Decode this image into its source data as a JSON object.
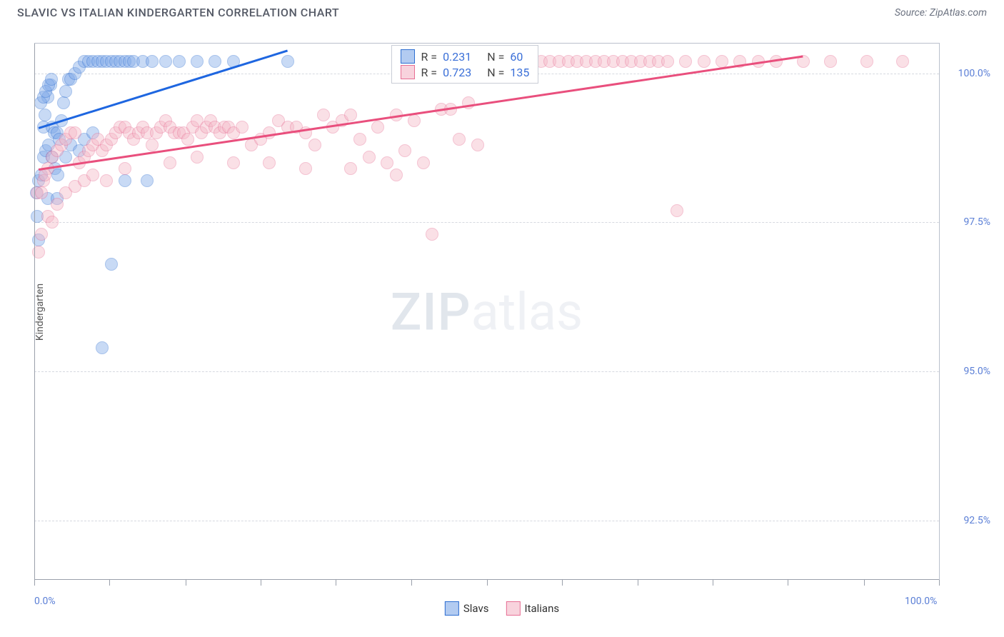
{
  "header": {
    "title": "SLAVIC VS ITALIAN KINDERGARTEN CORRELATION CHART",
    "source_prefix": "Source: ",
    "source": "ZipAtlas.com"
  },
  "watermark": {
    "zip": "ZIP",
    "atlas": "atlas"
  },
  "chart": {
    "type": "scatter",
    "ylabel": "Kindergarten",
    "xlim": [
      0,
      100
    ],
    "ylim": [
      91.5,
      100.5
    ],
    "x_ticks_pct": [
      0,
      8.3,
      16.7,
      25,
      33.3,
      41.7,
      50,
      58.3,
      66.7,
      75,
      83.3,
      91.7,
      100
    ],
    "x_tick_labels": [
      {
        "pct": 0,
        "text": "0.0%",
        "align": "left"
      },
      {
        "pct": 100,
        "text": "100.0%",
        "align": "right"
      }
    ],
    "y_gridlines": [
      92.5,
      95.0,
      97.5,
      100.0
    ],
    "y_tick_labels": [
      "92.5%",
      "95.0%",
      "97.5%",
      "100.0%"
    ],
    "background_color": "#ffffff",
    "grid_color": "#d6d9e0",
    "axis_color": "#9aa0ab",
    "tick_label_color": "#5b7fd6",
    "marker": {
      "radius": 9,
      "opacity": 0.42,
      "stroke_opacity": 0.85,
      "stroke_width": 1.3
    },
    "series": [
      {
        "key": "slavs",
        "label": "Slavs",
        "color_fill": "#7ea8e8",
        "color_stroke": "#2f6fd1",
        "trend_color": "#1e66e0",
        "corr": {
          "R": "0.231",
          "N": "60"
        },
        "trend": {
          "x0": 0.5,
          "y0": 99.1,
          "x1": 28,
          "y1": 100.4
        },
        "points": [
          [
            0.5,
            98.2
          ],
          [
            0.8,
            98.3
          ],
          [
            1.0,
            99.1
          ],
          [
            1.2,
            99.3
          ],
          [
            1.5,
            99.6
          ],
          [
            1.8,
            99.8
          ],
          [
            2.0,
            99.1
          ],
          [
            2.2,
            99.0
          ],
          [
            2.5,
            99.0
          ],
          [
            2.8,
            98.9
          ],
          [
            3.0,
            99.2
          ],
          [
            3.2,
            99.5
          ],
          [
            3.5,
            99.7
          ],
          [
            3.8,
            99.9
          ],
          [
            4.0,
            99.9
          ],
          [
            4.5,
            100.0
          ],
          [
            5.0,
            100.1
          ],
          [
            5.5,
            100.2
          ],
          [
            6.0,
            100.2
          ],
          [
            6.5,
            100.2
          ],
          [
            7.0,
            100.2
          ],
          [
            7.5,
            100.2
          ],
          [
            8.0,
            100.2
          ],
          [
            8.5,
            100.2
          ],
          [
            9.0,
            100.2
          ],
          [
            9.5,
            100.2
          ],
          [
            10.0,
            100.2
          ],
          [
            10.5,
            100.2
          ],
          [
            11.0,
            100.2
          ],
          [
            12.0,
            100.2
          ],
          [
            13.0,
            100.2
          ],
          [
            14.5,
            100.2
          ],
          [
            16.0,
            100.2
          ],
          [
            18.0,
            100.2
          ],
          [
            20.0,
            100.2
          ],
          [
            22.0,
            100.2
          ],
          [
            28.0,
            100.2
          ],
          [
            1.0,
            98.6
          ],
          [
            1.3,
            98.7
          ],
          [
            1.6,
            98.8
          ],
          [
            2.0,
            98.6
          ],
          [
            2.3,
            98.4
          ],
          [
            2.6,
            98.3
          ],
          [
            0.7,
            99.5
          ],
          [
            1.0,
            99.6
          ],
          [
            1.3,
            99.7
          ],
          [
            1.6,
            99.8
          ],
          [
            1.9,
            99.9
          ],
          [
            3.5,
            98.6
          ],
          [
            4.0,
            98.8
          ],
          [
            5.0,
            98.7
          ],
          [
            5.5,
            98.9
          ],
          [
            6.5,
            99.0
          ],
          [
            1.5,
            97.9
          ],
          [
            2.5,
            97.9
          ],
          [
            0.5,
            97.2
          ],
          [
            0.3,
            97.6
          ],
          [
            0.2,
            98.0
          ],
          [
            8.5,
            96.8
          ],
          [
            7.5,
            95.4
          ],
          [
            10.0,
            98.2
          ],
          [
            12.5,
            98.2
          ]
        ]
      },
      {
        "key": "italians",
        "label": "Italians",
        "color_fill": "#f4b6c6",
        "color_stroke": "#e76r94",
        "color_stroke_fixed": "#e76f94",
        "trend_color": "#e94f7d",
        "corr": {
          "R": "0.723",
          "N": "135"
        },
        "trend": {
          "x0": 0.5,
          "y0": 98.4,
          "x1": 85,
          "y1": 100.3
        },
        "points": [
          [
            0.3,
            98.0
          ],
          [
            0.5,
            97.0
          ],
          [
            0.8,
            97.3
          ],
          [
            1.0,
            98.2
          ],
          [
            1.5,
            98.4
          ],
          [
            2.0,
            98.6
          ],
          [
            2.5,
            98.7
          ],
          [
            3.0,
            98.8
          ],
          [
            3.5,
            98.9
          ],
          [
            4.0,
            99.0
          ],
          [
            4.5,
            99.0
          ],
          [
            5.0,
            98.5
          ],
          [
            5.5,
            98.6
          ],
          [
            6.0,
            98.7
          ],
          [
            6.5,
            98.8
          ],
          [
            7.0,
            98.9
          ],
          [
            7.5,
            98.7
          ],
          [
            8.0,
            98.8
          ],
          [
            8.5,
            98.9
          ],
          [
            9.0,
            99.0
          ],
          [
            9.5,
            99.1
          ],
          [
            10.0,
            99.1
          ],
          [
            10.5,
            99.0
          ],
          [
            11.0,
            98.9
          ],
          [
            11.5,
            99.0
          ],
          [
            12.0,
            99.1
          ],
          [
            12.5,
            99.0
          ],
          [
            13.0,
            98.8
          ],
          [
            13.5,
            99.0
          ],
          [
            14.0,
            99.1
          ],
          [
            14.5,
            99.2
          ],
          [
            15.0,
            99.1
          ],
          [
            15.5,
            99.0
          ],
          [
            16.0,
            99.0
          ],
          [
            16.5,
            99.0
          ],
          [
            17.0,
            98.9
          ],
          [
            17.5,
            99.1
          ],
          [
            18.0,
            99.2
          ],
          [
            18.5,
            99.0
          ],
          [
            19.0,
            99.1
          ],
          [
            19.5,
            99.2
          ],
          [
            20.0,
            99.1
          ],
          [
            20.5,
            99.0
          ],
          [
            21.0,
            99.1
          ],
          [
            21.5,
            99.1
          ],
          [
            22.0,
            99.0
          ],
          [
            23.0,
            99.1
          ],
          [
            24.0,
            98.8
          ],
          [
            25.0,
            98.9
          ],
          [
            26.0,
            99.0
          ],
          [
            27.0,
            99.2
          ],
          [
            28.0,
            99.1
          ],
          [
            29.0,
            99.1
          ],
          [
            30.0,
            99.0
          ],
          [
            31.0,
            98.8
          ],
          [
            32.0,
            99.3
          ],
          [
            33.0,
            99.1
          ],
          [
            34.0,
            99.2
          ],
          [
            35.0,
            99.3
          ],
          [
            36.0,
            98.9
          ],
          [
            37.0,
            98.6
          ],
          [
            38.0,
            99.1
          ],
          [
            39.0,
            98.5
          ],
          [
            40.0,
            99.3
          ],
          [
            41.0,
            98.7
          ],
          [
            42.0,
            99.2
          ],
          [
            43.0,
            98.5
          ],
          [
            44.0,
            97.3
          ],
          [
            45.0,
            99.4
          ],
          [
            46.0,
            99.4
          ],
          [
            47.0,
            98.9
          ],
          [
            48.0,
            99.5
          ],
          [
            49.0,
            98.8
          ],
          [
            50.0,
            100.2
          ],
          [
            51.0,
            100.2
          ],
          [
            52.0,
            100.2
          ],
          [
            53.0,
            100.2
          ],
          [
            54.0,
            100.2
          ],
          [
            55.0,
            100.2
          ],
          [
            56.0,
            100.2
          ],
          [
            57.0,
            100.2
          ],
          [
            58.0,
            100.2
          ],
          [
            59.0,
            100.2
          ],
          [
            60.0,
            100.2
          ],
          [
            61.0,
            100.2
          ],
          [
            62.0,
            100.2
          ],
          [
            63.0,
            100.2
          ],
          [
            64.0,
            100.2
          ],
          [
            65.0,
            100.2
          ],
          [
            66.0,
            100.2
          ],
          [
            67.0,
            100.2
          ],
          [
            68.0,
            100.2
          ],
          [
            69.0,
            100.2
          ],
          [
            70.0,
            100.2
          ],
          [
            72.0,
            100.2
          ],
          [
            74.0,
            100.2
          ],
          [
            76.0,
            100.2
          ],
          [
            78.0,
            100.2
          ],
          [
            80.0,
            100.2
          ],
          [
            82.0,
            100.2
          ],
          [
            85.0,
            100.2
          ],
          [
            88.0,
            100.2
          ],
          [
            92.0,
            100.2
          ],
          [
            96.0,
            100.2
          ],
          [
            45.0,
            100.2
          ],
          [
            46.5,
            100.2
          ],
          [
            48.0,
            100.2
          ],
          [
            2.5,
            97.8
          ],
          [
            3.5,
            98.0
          ],
          [
            4.5,
            98.1
          ],
          [
            5.5,
            98.2
          ],
          [
            6.5,
            98.3
          ],
          [
            8.0,
            98.2
          ],
          [
            10.0,
            98.4
          ],
          [
            15.0,
            98.5
          ],
          [
            18.0,
            98.6
          ],
          [
            22.0,
            98.5
          ],
          [
            26.0,
            98.5
          ],
          [
            30.0,
            98.4
          ],
          [
            35.0,
            98.4
          ],
          [
            40.0,
            98.3
          ],
          [
            71.0,
            97.7
          ],
          [
            1.5,
            97.6
          ],
          [
            2.0,
            97.5
          ],
          [
            0.8,
            98.0
          ],
          [
            1.2,
            98.3
          ]
        ]
      }
    ],
    "legend": {
      "R_label": "R =",
      "N_label": "N ="
    },
    "bottom_legend": [
      {
        "key": "slavs",
        "label": "Slavs"
      },
      {
        "key": "italians",
        "label": "Italians"
      }
    ]
  }
}
